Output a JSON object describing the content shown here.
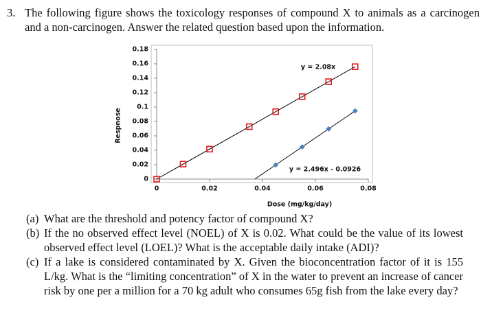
{
  "question": {
    "number": "3.",
    "text": "The following figure shows the toxicology responses of compound X to animals as a carcinogen and a non-carcinogen. Answer the related question based upon the information."
  },
  "chart_data": {
    "type": "scatter",
    "x_label": "Dose (mg/kg/day)",
    "y_label": "Respnose",
    "xlim": [
      0,
      0.08
    ],
    "ylim": [
      0,
      0.18
    ],
    "xticks": [
      0,
      0.02,
      0.04,
      0.06,
      0.08
    ],
    "yticks": [
      0,
      0.02,
      0.04,
      0.06,
      0.08,
      0.1,
      0.12,
      0.14,
      0.16,
      0.18
    ],
    "series": [
      {
        "marker": "square",
        "color": "#e0191b",
        "x": [
          0,
          0.01,
          0.02,
          0.035,
          0.045,
          0.055,
          0.065,
          0.075
        ],
        "values": [
          0,
          0.0208,
          0.0416,
          0.0728,
          0.0936,
          0.1144,
          0.1352,
          0.156
        ],
        "equation": "y = 2.08x",
        "trend": {
          "x": [
            0,
            0.075
          ],
          "y": [
            0,
            0.156
          ]
        }
      },
      {
        "marker": "diamond",
        "color": "#4f81bd",
        "x": [
          0.045,
          0.055,
          0.065,
          0.075
        ],
        "values": [
          0.0197,
          0.0447,
          0.0696,
          0.0946
        ],
        "equation": "y = 2.496x - 0.0926",
        "trend": {
          "x": [
            0.0371,
            0.075
          ],
          "y": [
            0,
            0.0946
          ]
        }
      }
    ]
  },
  "parts": [
    {
      "label": "(a)",
      "text": "What are the threshold and potency factor of compound X?"
    },
    {
      "label": "(b)",
      "text": "If the no observed effect level (NOEL) of X is 0.02. What could be the value of its lowest observed effect level (LOEL)? What is the acceptable daily intake (ADI)?"
    },
    {
      "label": "(c)",
      "text": "If a lake is considered contaminated by X. Given the bioconcentration factor of it is 155 L/kg. What is the “limiting concentration” of X in the water to prevent an increase of cancer risk by one per a million for a 70 kg adult who consumes 65g fish from the lake every day?"
    }
  ]
}
